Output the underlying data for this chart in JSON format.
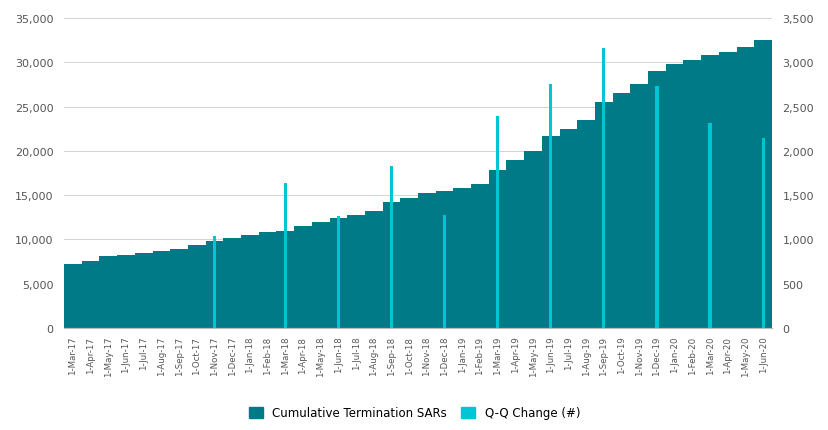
{
  "labels": [
    "1-Mar-17",
    "1-Apr-17",
    "1-May-17",
    "1-Jun-17",
    "1-Jul-17",
    "1-Aug-17",
    "1-Sep-17",
    "1-Oct-17",
    "1-Nov-17",
    "1-Dec-17",
    "1-Jan-18",
    "1-Feb-18",
    "1-Mar-18",
    "1-Apr-18",
    "1-May-18",
    "1-Jun-18",
    "1-Jul-18",
    "1-Aug-18",
    "1-Sep-18",
    "1-Oct-18",
    "1-Nov-18",
    "1-Dec-18",
    "1-Jan-19",
    "1-Feb-19",
    "1-Mar-19",
    "1-Apr-19",
    "1-May-19",
    "1-Jun-19",
    "1-Jul-19",
    "1-Aug-19",
    "1-Sep-19",
    "1-Oct-19",
    "1-Nov-19",
    "1-Dec-19",
    "1-Jan-20",
    "1-Feb-20",
    "1-Mar-20",
    "1-Apr-20",
    "1-May-20",
    "1-Jun-20"
  ],
  "cumulative_sars": [
    7200,
    7600,
    8100,
    8300,
    8500,
    8700,
    8900,
    9400,
    9800,
    10200,
    10500,
    10800,
    11000,
    11500,
    12000,
    12400,
    12800,
    13200,
    14200,
    14700,
    15200,
    15500,
    15800,
    16300,
    17800,
    19000,
    20000,
    21700,
    22500,
    23500,
    25500,
    26500,
    27500,
    29000,
    29800,
    30300,
    30800,
    31200,
    31700,
    32500
  ],
  "qq_change": [
    0,
    0,
    0,
    0,
    0,
    0,
    0,
    0,
    1040,
    0,
    0,
    0,
    1640,
    0,
    0,
    1270,
    0,
    0,
    1830,
    0,
    0,
    1280,
    0,
    0,
    2390,
    0,
    0,
    2750,
    0,
    0,
    3160,
    0,
    0,
    2730,
    0,
    0,
    2320,
    0,
    0,
    2150
  ],
  "area_color": "#007A87",
  "bar_color_light": "#00C5D4",
  "background_color": "#FFFFFF",
  "grid_color": "#CCCCCC",
  "left_ylim": [
    0,
    35000
  ],
  "right_ylim": [
    0,
    3500
  ],
  "left_yticks": [
    0,
    5000,
    10000,
    15000,
    20000,
    25000,
    30000,
    35000
  ],
  "right_yticks": [
    0,
    500,
    1000,
    1500,
    2000,
    2500,
    3000,
    3500
  ],
  "legend_label1": "Cumulative Termination SARs",
  "legend_label2": "Q-Q Change (#)"
}
